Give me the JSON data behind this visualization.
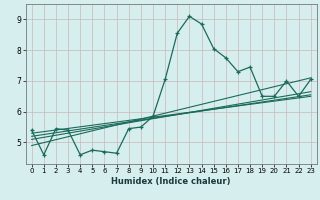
{
  "xlabel": "Humidex (Indice chaleur)",
  "ylabel": "",
  "background_color": "#d7eeee",
  "grid_color": "#c8b8b8",
  "line_color": "#1a6b5a",
  "xlim": [
    -0.5,
    23.5
  ],
  "ylim": [
    4.3,
    9.5
  ],
  "xticks": [
    0,
    1,
    2,
    3,
    4,
    5,
    6,
    7,
    8,
    9,
    10,
    11,
    12,
    13,
    14,
    15,
    16,
    17,
    18,
    19,
    20,
    21,
    22,
    23
  ],
  "yticks": [
    5,
    6,
    7,
    8,
    9
  ],
  "series": [
    [
      0,
      5.4
    ],
    [
      1,
      4.6
    ],
    [
      2,
      5.45
    ],
    [
      3,
      5.4
    ],
    [
      4,
      4.6
    ],
    [
      5,
      4.75
    ],
    [
      6,
      4.7
    ],
    [
      7,
      4.65
    ],
    [
      8,
      5.45
    ],
    [
      9,
      5.5
    ],
    [
      10,
      5.85
    ],
    [
      11,
      7.05
    ],
    [
      12,
      8.55
    ],
    [
      13,
      9.1
    ],
    [
      14,
      8.85
    ],
    [
      15,
      8.05
    ],
    [
      16,
      7.75
    ],
    [
      17,
      7.3
    ],
    [
      18,
      7.45
    ],
    [
      19,
      6.5
    ],
    [
      20,
      6.5
    ],
    [
      21,
      7.0
    ],
    [
      22,
      6.5
    ],
    [
      23,
      7.05
    ]
  ],
  "trend_lines": [
    [
      [
        0,
        4.9
      ],
      [
        23,
        7.1
      ]
    ],
    [
      [
        0,
        5.1
      ],
      [
        23,
        6.65
      ]
    ],
    [
      [
        0,
        5.2
      ],
      [
        23,
        6.55
      ]
    ],
    [
      [
        0,
        5.3
      ],
      [
        23,
        6.5
      ]
    ]
  ]
}
